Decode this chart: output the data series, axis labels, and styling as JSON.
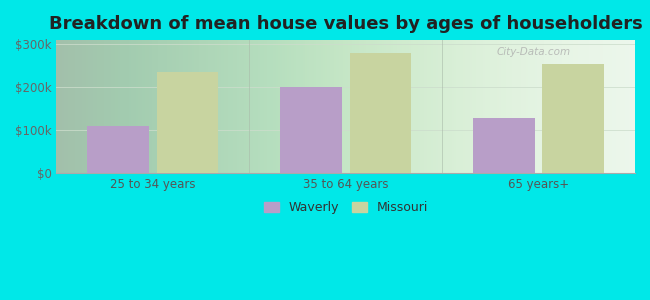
{
  "title": "Breakdown of mean house values by ages of householders",
  "categories": [
    "25 to 34 years",
    "35 to 64 years",
    "65 years+"
  ],
  "waverly": [
    110000,
    200000,
    130000
  ],
  "missouri": [
    235000,
    280000,
    255000
  ],
  "waverly_color": "#b89ec8",
  "missouri_color": "#c8d4a0",
  "background_outer": "#00e8e8",
  "background_inner_top": "#d8edd8",
  "background_inner_bottom": "#f0faf0",
  "ylabel_ticks": [
    "$0",
    "$100k",
    "$200k",
    "$300k"
  ],
  "ytick_vals": [
    0,
    100000,
    200000,
    300000
  ],
  "ylim": [
    0,
    310000
  ],
  "legend_waverly": "Waverly",
  "legend_missouri": "Missouri",
  "title_fontsize": 13,
  "bar_width": 0.32,
  "watermark": "City-Data.com"
}
